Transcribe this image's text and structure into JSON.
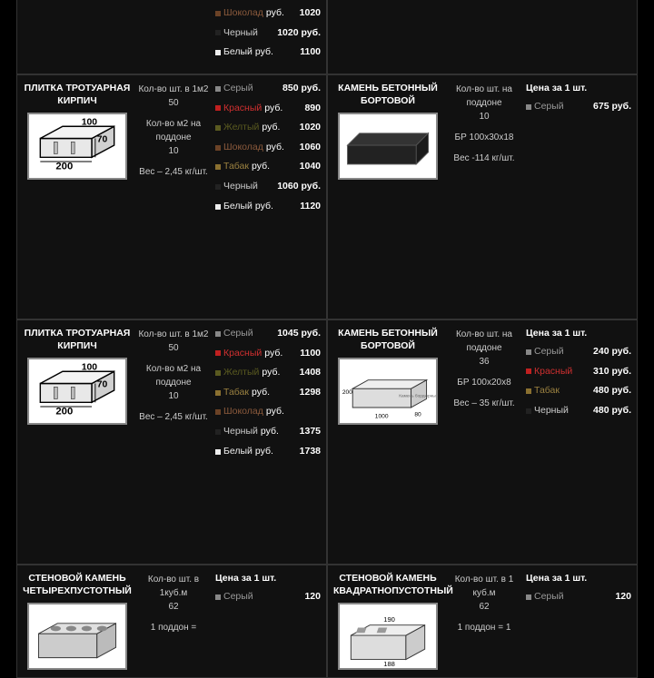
{
  "colors": {
    "grey": {
      "name": "Серый",
      "box": "#888888",
      "txt": "c-grey"
    },
    "red": {
      "name": "Красный",
      "box": "#c02020",
      "txt": "c-red"
    },
    "yellow": {
      "name": "Желтый",
      "box": "#5a5a20",
      "txt": "c-yellow"
    },
    "choco": {
      "name": "Шоколад",
      "box": "#6b4226",
      "txt": "c-choco"
    },
    "tabak": {
      "name": "Табак",
      "box": "#8a7030",
      "txt": "c-tabak"
    },
    "black": {
      "name": "Черный",
      "box": "#222222",
      "txt": "c-black"
    },
    "white": {
      "name": "Белый",
      "box": "#eeeeee",
      "txt": "c-white"
    }
  },
  "rows": [
    {
      "partial_top": true,
      "left": {
        "title": "",
        "img": null,
        "specs": [],
        "prices": [
          {
            "c": "choco",
            "val": "1020",
            "unit": "руб."
          },
          {
            "c": "black",
            "val": "1020 руб.",
            "unit": ""
          },
          {
            "c": "white",
            "val": "1100",
            "unit": "руб."
          }
        ]
      },
      "right": {
        "title": "",
        "img": null,
        "specs": [],
        "prices": []
      }
    },
    {
      "left": {
        "title": "ПЛИТКА ТРОТУАРНАЯ КИРПИЧ",
        "img": "brick",
        "specs": [
          "Кол-во шт. в 1м2\n50",
          "Кол-во м2 на поддоне\n10",
          "Вес – 2,45 кг/шт."
        ],
        "prices": [
          {
            "c": "grey",
            "val": "850 руб.",
            "unit": ""
          },
          {
            "c": "red",
            "val": "890",
            "unit": "руб."
          },
          {
            "c": "yellow",
            "val": "1020",
            "unit": "руб."
          },
          {
            "c": "choco",
            "val": "1060",
            "unit": "руб."
          },
          {
            "c": "tabak",
            "val": "1040",
            "unit": "руб."
          },
          {
            "c": "black",
            "val": "1060 руб.",
            "unit": ""
          },
          {
            "c": "white",
            "val": "1120",
            "unit": "руб."
          }
        ]
      },
      "right": {
        "title": "КАМЕНЬ БЕТОННЫЙ БОРТОВОЙ",
        "img": "curb1",
        "specs": [
          "Кол-во шт. на поддоне\n10",
          "БР 100х30х18",
          "Вес -114 кг/шт."
        ],
        "price_head": "Цена за 1 шт.",
        "prices": [
          {
            "c": "grey",
            "val": "675 руб.",
            "unit": ""
          }
        ]
      }
    },
    {
      "left": {
        "title": "ПЛИТКА ТРОТУАРНАЯ КИРПИЧ",
        "img": "brick",
        "specs": [
          "Кол-во шт. в 1м2\n50",
          "Кол-во м2 на поддоне\n10",
          "Вес – 2,45 кг/шт."
        ],
        "prices": [
          {
            "c": "grey",
            "val": "1045 руб.",
            "unit": ""
          },
          {
            "c": "red",
            "val": "1100",
            "unit": "руб."
          },
          {
            "c": "yellow",
            "val": "1408",
            "unit": "руб."
          },
          {
            "c": "tabak",
            "val": "1298",
            "unit": "руб."
          },
          {
            "c": "choco",
            "val": "",
            "unit": "руб."
          },
          {
            "c": "black",
            "val": "1375",
            "unit": "руб."
          },
          {
            "c": "white",
            "val": "1738",
            "unit": "руб."
          }
        ]
      },
      "right": {
        "title": "КАМЕНЬ БЕТОННЫЙ БОРТОВОЙ",
        "img": "curb2",
        "specs": [
          "Кол-во шт. на поддоне\n36",
          "БР 100х20х8",
          "Вес – 35 кг/шт."
        ],
        "price_head": "Цена за 1 шт.",
        "prices": [
          {
            "c": "grey",
            "val": "240 руб.",
            "unit": ""
          },
          {
            "c": "red",
            "val": "310 руб.",
            "unit": ""
          },
          {
            "c": "tabak",
            "val": "480 руб.",
            "unit": ""
          },
          {
            "c": "black",
            "val": "480 руб.",
            "unit": ""
          }
        ]
      }
    },
    {
      "partial_bottom": true,
      "left": {
        "title": "СТЕНОВОЙ КАМЕНЬ ЧЕТЫРЕХПУСТОТНЫЙ",
        "img": "block4",
        "specs": [
          "Кол-во шт. в 1куб.м\n62",
          "1 поддон ="
        ],
        "price_head": "Цена за 1 шт.",
        "prices": [
          {
            "c": "grey",
            "val": "120",
            "unit": ""
          }
        ]
      },
      "right": {
        "title": "СТЕНОВОЙ КАМЕНЬ КВАДРАТНОПУСТОТНЫЙ",
        "img": "blocksq",
        "specs": [
          "Кол-во шт. в 1 куб.м\n62",
          "1 поддон = 1"
        ],
        "price_head": "Цена за 1 шт.",
        "prices": [
          {
            "c": "grey",
            "val": "120",
            "unit": ""
          }
        ]
      }
    }
  ],
  "svg": {
    "brick_labels": {
      "w": "200",
      "h": "70",
      "l": "100"
    },
    "curb2_labels": {
      "h": "200",
      "l": "1000",
      "w": "80",
      "note": "Камень бордюрный"
    },
    "blocksq_labels": {
      "w": "190",
      "h": "188"
    }
  }
}
